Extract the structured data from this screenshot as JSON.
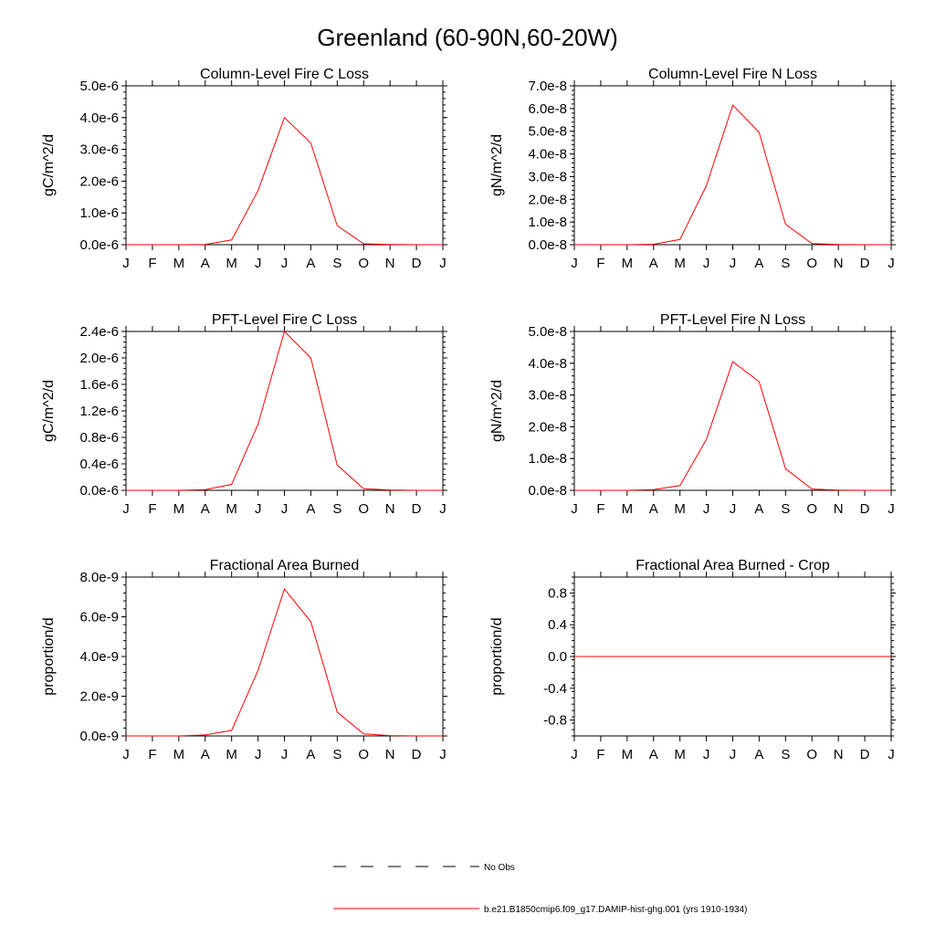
{
  "title": "Greenland (60-90N,60-20W)",
  "months": [
    "J",
    "F",
    "M",
    "A",
    "M",
    "J",
    "J",
    "A",
    "S",
    "O",
    "N",
    "D",
    "J"
  ],
  "legend": {
    "obs_label": "No Obs",
    "model_label": "b.e21.B1850cmip6.f09_g17.DAMIP-hist-ghg.001 (yrs 1910-1934)",
    "obs_color": "#000000",
    "model_color": "#ff0000"
  },
  "chart_data": [
    {
      "type": "line",
      "title": "Column-Level Fire C Loss",
      "ylabel": "gC/m^2/d",
      "ylim": [
        0,
        5e-06
      ],
      "yticks": [
        0,
        1e-06,
        2e-06,
        3e-06,
        4e-06,
        5e-06
      ],
      "ytick_labels": [
        "0.0e-6",
        "1.0e-6",
        "2.0e-6",
        "3.0e-6",
        "4.0e-6",
        "5.0e-6"
      ],
      "x": [
        "J",
        "F",
        "M",
        "A",
        "M",
        "J",
        "J",
        "A",
        "S",
        "O",
        "N",
        "D",
        "J"
      ],
      "series": [
        {
          "name": "b.e21.B1850cmip6.f09_g17.DAMIP-hist-ghg.001 (yrs 1910-1934)",
          "color": "#ff0000",
          "values": [
            0,
            0,
            0,
            1e-08,
            1.5e-07,
            1.7e-06,
            4e-06,
            3.2e-06,
            6e-07,
            3e-08,
            5e-09,
            0,
            0
          ]
        }
      ]
    },
    {
      "type": "line",
      "title": "Column-Level Fire N Loss",
      "ylabel": "gN/m^2/d",
      "ylim": [
        0,
        7e-08
      ],
      "yticks": [
        0,
        1e-08,
        2e-08,
        3e-08,
        4e-08,
        5e-08,
        6e-08,
        7e-08
      ],
      "ytick_labels": [
        "0.0e-8",
        "1.0e-8",
        "2.0e-8",
        "3.0e-8",
        "4.0e-8",
        "5.0e-8",
        "6.0e-8",
        "7.0e-8"
      ],
      "x": [
        "J",
        "F",
        "M",
        "A",
        "M",
        "J",
        "J",
        "A",
        "S",
        "O",
        "N",
        "D",
        "J"
      ],
      "series": [
        {
          "name": "b.e21.B1850cmip6.f09_g17.DAMIP-hist-ghg.001 (yrs 1910-1934)",
          "color": "#ff0000",
          "values": [
            0,
            0,
            0,
            2e-10,
            2.3e-09,
            2.6e-08,
            6.15e-08,
            4.95e-08,
            9e-09,
            5e-10,
            1e-10,
            0,
            0
          ]
        }
      ]
    },
    {
      "type": "line",
      "title": "PFT-Level Fire C Loss",
      "ylabel": "gC/m^2/d",
      "ylim": [
        0,
        2.4e-06
      ],
      "yticks": [
        0,
        4e-07,
        8e-07,
        1.2e-06,
        1.6e-06,
        2e-06,
        2.4e-06
      ],
      "ytick_labels": [
        "0.0e-6",
        "0.4e-6",
        "0.8e-6",
        "1.2e-6",
        "1.6e-6",
        "2.0e-6",
        "2.4e-6"
      ],
      "x": [
        "J",
        "F",
        "M",
        "A",
        "M",
        "J",
        "J",
        "A",
        "S",
        "O",
        "N",
        "D",
        "J"
      ],
      "series": [
        {
          "name": "b.e21.B1850cmip6.f09_g17.DAMIP-hist-ghg.001 (yrs 1910-1934)",
          "color": "#ff0000",
          "values": [
            0,
            0,
            0,
            1e-08,
            9e-08,
            1e-06,
            2.4e-06,
            2e-06,
            3.8e-07,
            2.5e-08,
            5e-09,
            0,
            0
          ]
        }
      ]
    },
    {
      "type": "line",
      "title": "PFT-Level Fire N Loss",
      "ylabel": "gN/m^2/d",
      "ylim": [
        0,
        5e-08
      ],
      "yticks": [
        0,
        1e-08,
        2e-08,
        3e-08,
        4e-08,
        5e-08
      ],
      "ytick_labels": [
        "0.0e-8",
        "1.0e-8",
        "2.0e-8",
        "3.0e-8",
        "4.0e-8",
        "5.0e-8"
      ],
      "x": [
        "J",
        "F",
        "M",
        "A",
        "M",
        "J",
        "J",
        "A",
        "S",
        "O",
        "N",
        "D",
        "J"
      ],
      "series": [
        {
          "name": "b.e21.B1850cmip6.f09_g17.DAMIP-hist-ghg.001 (yrs 1910-1934)",
          "color": "#ff0000",
          "values": [
            0,
            0,
            0,
            2e-10,
            1.5e-09,
            1.6e-08,
            4.05e-08,
            3.42e-08,
            6.8e-09,
            4e-10,
            1e-10,
            0,
            0
          ]
        }
      ]
    },
    {
      "type": "line",
      "title": "Fractional Area Burned",
      "ylabel": "proportion/d",
      "ylim": [
        0,
        8e-09
      ],
      "yticks": [
        0,
        2e-09,
        4e-09,
        6e-09,
        8e-09
      ],
      "ytick_labels": [
        "0.0e-9",
        "2.0e-9",
        "4.0e-9",
        "6.0e-9",
        "8.0e-9"
      ],
      "x": [
        "J",
        "F",
        "M",
        "A",
        "M",
        "J",
        "J",
        "A",
        "S",
        "O",
        "N",
        "D",
        "J"
      ],
      "series": [
        {
          "name": "b.e21.B1850cmip6.f09_g17.DAMIP-hist-ghg.001 (yrs 1910-1934)",
          "color": "#ff0000",
          "values": [
            0,
            0,
            0,
            5e-11,
            2.8e-10,
            3.3e-09,
            7.4e-09,
            5.75e-09,
            1.2e-09,
            1e-10,
            2e-11,
            0,
            0
          ]
        }
      ]
    },
    {
      "type": "line",
      "title": "Fractional Area Burned - Crop",
      "ylabel": "proportion/d",
      "ylim": [
        -1.0,
        1.0
      ],
      "yticks": [
        -0.8,
        -0.4,
        0.0,
        0.4,
        0.8
      ],
      "ytick_labels": [
        "-0.8",
        "-0.4",
        "0.0",
        "0.4",
        "0.8"
      ],
      "x": [
        "J",
        "F",
        "M",
        "A",
        "M",
        "J",
        "J",
        "A",
        "S",
        "O",
        "N",
        "D",
        "J"
      ],
      "series": [
        {
          "name": "b.e21.B1850cmip6.f09_g17.DAMIP-hist-ghg.001 (yrs 1910-1934)",
          "color": "#ff0000",
          "values": [
            0,
            0,
            0,
            0,
            0,
            0,
            0,
            0,
            0,
            0,
            0,
            0,
            0
          ]
        }
      ]
    }
  ]
}
